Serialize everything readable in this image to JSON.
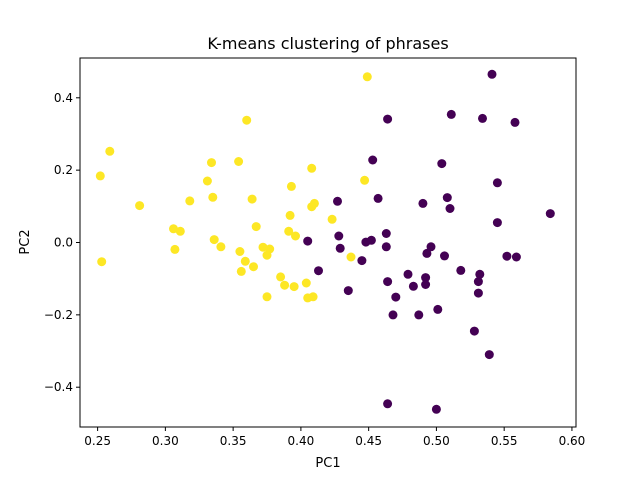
{
  "chart_data": {
    "type": "scatter",
    "title": "K-means clustering of phrases",
    "xlabel": "PC1",
    "ylabel": "PC2",
    "xlim": [
      0.237,
      0.603
    ],
    "ylim": [
      -0.51,
      0.51
    ],
    "xticks": [
      0.25,
      0.3,
      0.35,
      0.4,
      0.45,
      0.5,
      0.55,
      0.6
    ],
    "xtick_labels": [
      "0.25",
      "0.30",
      "0.35",
      "0.40",
      "0.45",
      "0.50",
      "0.55",
      "0.60"
    ],
    "yticks": [
      -0.4,
      -0.2,
      0.0,
      0.2,
      0.4
    ],
    "ytick_labels": [
      "−0.4",
      "−0.2",
      "0.0",
      "0.2",
      "0.4"
    ],
    "grid": false,
    "legend": "none",
    "series": [
      {
        "color": "#fde725",
        "points": [
          [
            0.252,
            0.184
          ],
          [
            0.253,
            -0.053
          ],
          [
            0.259,
            0.252
          ],
          [
            0.281,
            0.102
          ],
          [
            0.306,
            0.038
          ],
          [
            0.307,
            -0.019
          ],
          [
            0.311,
            0.031
          ],
          [
            0.318,
            0.115
          ],
          [
            0.331,
            0.17
          ],
          [
            0.334,
            0.221
          ],
          [
            0.335,
            0.125
          ],
          [
            0.336,
            0.008
          ],
          [
            0.341,
            -0.012
          ],
          [
            0.354,
            0.224
          ],
          [
            0.355,
            -0.025
          ],
          [
            0.356,
            -0.08
          ],
          [
            0.359,
            -0.052
          ],
          [
            0.36,
            0.338
          ],
          [
            0.364,
            0.12
          ],
          [
            0.365,
            -0.067
          ],
          [
            0.367,
            0.044
          ],
          [
            0.372,
            -0.013
          ],
          [
            0.375,
            -0.15
          ],
          [
            0.375,
            -0.035
          ],
          [
            0.377,
            -0.018
          ],
          [
            0.385,
            -0.095
          ],
          [
            0.388,
            -0.118
          ],
          [
            0.391,
            0.031
          ],
          [
            0.392,
            0.075
          ],
          [
            0.393,
            0.155
          ],
          [
            0.395,
            -0.122
          ],
          [
            0.396,
            0.018
          ],
          [
            0.404,
            -0.112
          ],
          [
            0.405,
            -0.153
          ],
          [
            0.408,
            0.205
          ],
          [
            0.408,
            0.099
          ],
          [
            0.409,
            -0.15
          ],
          [
            0.41,
            0.108
          ],
          [
            0.423,
            0.064
          ],
          [
            0.437,
            -0.04
          ],
          [
            0.447,
            0.172
          ],
          [
            0.449,
            0.458
          ]
        ]
      },
      {
        "color": "#440154",
        "points": [
          [
            0.405,
            0.004
          ],
          [
            0.413,
            -0.078
          ],
          [
            0.427,
            0.114
          ],
          [
            0.428,
            0.018
          ],
          [
            0.429,
            -0.016
          ],
          [
            0.435,
            -0.133
          ],
          [
            0.445,
            -0.05
          ],
          [
            0.448,
            0.001
          ],
          [
            0.452,
            0.006
          ],
          [
            0.453,
            0.228
          ],
          [
            0.457,
            0.122
          ],
          [
            0.463,
            0.025
          ],
          [
            0.463,
            -0.012
          ],
          [
            0.464,
            0.341
          ],
          [
            0.464,
            -0.108
          ],
          [
            0.464,
            -0.446
          ],
          [
            0.468,
            -0.2
          ],
          [
            0.47,
            -0.151
          ],
          [
            0.479,
            -0.088
          ],
          [
            0.483,
            -0.121
          ],
          [
            0.487,
            -0.2
          ],
          [
            0.49,
            0.108
          ],
          [
            0.492,
            -0.097
          ],
          [
            0.492,
            -0.116
          ],
          [
            0.493,
            -0.03
          ],
          [
            0.496,
            -0.012
          ],
          [
            0.5,
            -0.461
          ],
          [
            0.501,
            -0.185
          ],
          [
            0.504,
            0.218
          ],
          [
            0.506,
            -0.037
          ],
          [
            0.508,
            0.124
          ],
          [
            0.51,
            0.094
          ],
          [
            0.511,
            0.354
          ],
          [
            0.518,
            -0.077
          ],
          [
            0.528,
            -0.245
          ],
          [
            0.531,
            -0.108
          ],
          [
            0.531,
            -0.14
          ],
          [
            0.532,
            -0.088
          ],
          [
            0.534,
            0.343
          ],
          [
            0.539,
            -0.31
          ],
          [
            0.541,
            0.465
          ],
          [
            0.545,
            0.165
          ],
          [
            0.545,
            0.055
          ],
          [
            0.552,
            -0.038
          ],
          [
            0.558,
            0.332
          ],
          [
            0.559,
            -0.04
          ],
          [
            0.584,
            0.08
          ]
        ]
      }
    ]
  }
}
